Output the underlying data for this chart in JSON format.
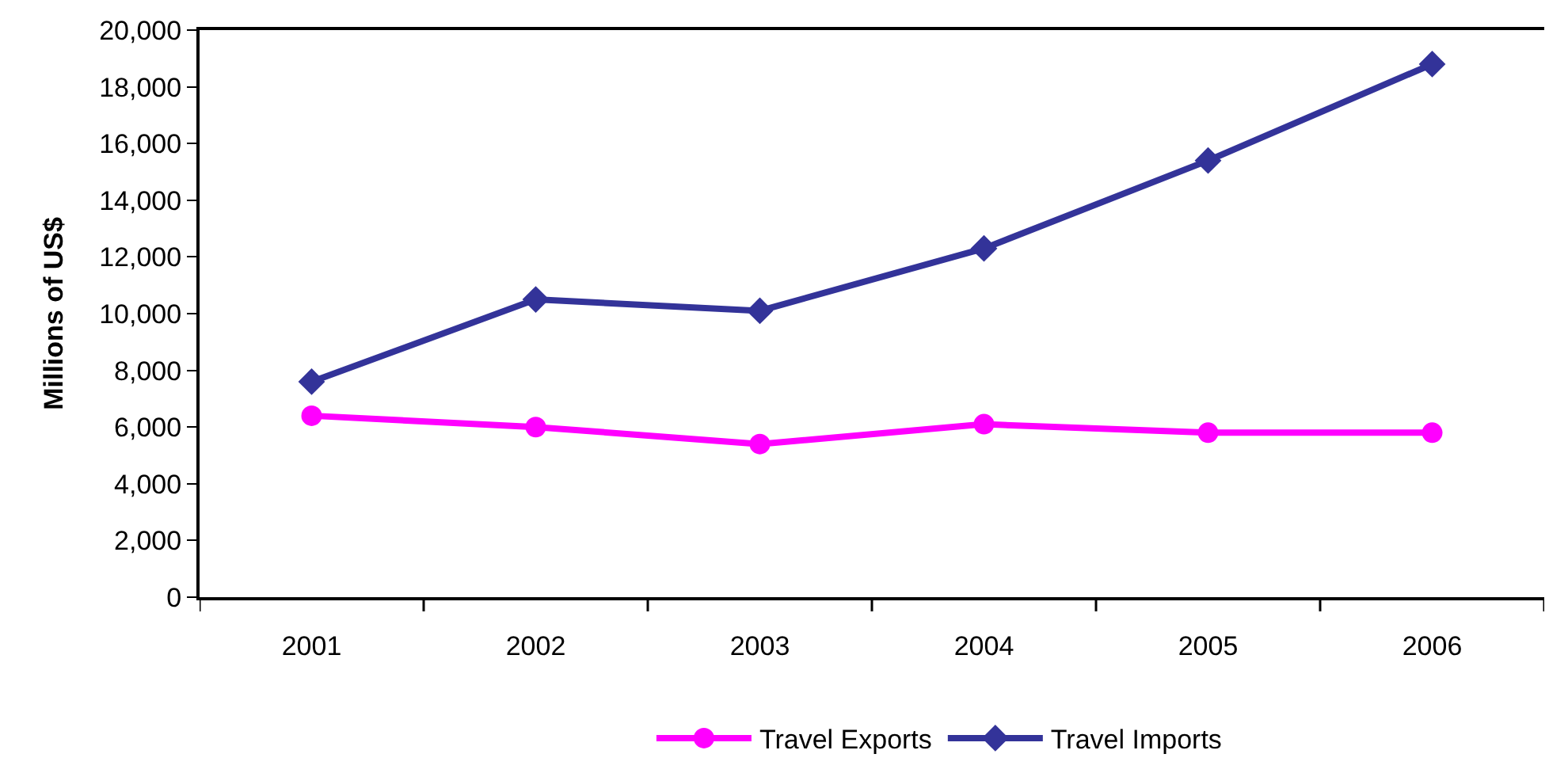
{
  "chart_data": {
    "type": "line",
    "ylabel": "Millions of US$",
    "categories": [
      "2001",
      "2002",
      "2003",
      "2004",
      "2005",
      "2006"
    ],
    "series": [
      {
        "name": "Travel Exports",
        "color": "#ff00ff",
        "marker": "circle",
        "values": [
          6400,
          6000,
          5400,
          6100,
          5800,
          5800
        ]
      },
      {
        "name": "Travel Imports",
        "color": "#333399",
        "marker": "diamond",
        "values": [
          7600,
          10500,
          10100,
          12300,
          15400,
          18800
        ]
      }
    ],
    "ylim": [
      0,
      20000
    ],
    "yticks": [
      0,
      {
        "value": 2000,
        "label": "2,000"
      },
      {
        "value": 4000,
        "label": "4,000"
      },
      {
        "value": 6000,
        "label": "6,000"
      },
      {
        "value": 8000,
        "label": "8,000"
      },
      {
        "value": 10000,
        "label": "10,000"
      },
      {
        "value": 12000,
        "label": "12,000"
      },
      {
        "value": 14000,
        "label": "14,000"
      },
      {
        "value": 16000,
        "label": "16,000"
      },
      {
        "value": 18000,
        "label": "18,000"
      },
      {
        "value": 20000,
        "label": "20,000"
      }
    ],
    "grid": false,
    "legend": "bottom",
    "line_style": "solid"
  }
}
